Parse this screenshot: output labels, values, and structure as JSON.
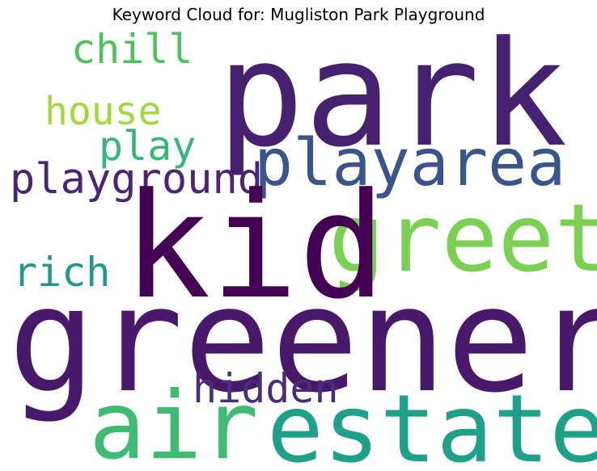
{
  "title": "Keyword Cloud for: Mugliston Park Playground",
  "words": [
    {
      "id": "w-chill",
      "text": "chill",
      "color": "#4ec25f"
    },
    {
      "id": "w-house",
      "text": "house",
      "color": "#a0da39"
    },
    {
      "id": "w-play",
      "text": "play",
      "color": "#35b779"
    },
    {
      "id": "w-playground",
      "text": "playground",
      "color": "#482576"
    },
    {
      "id": "w-park",
      "text": "park",
      "color": "#46216f"
    },
    {
      "id": "w-playarea",
      "text": "playarea",
      "color": "#39568c"
    },
    {
      "id": "w-greet",
      "text": "greet",
      "color": "#7ad151"
    },
    {
      "id": "w-kid",
      "text": "kid",
      "color": "#440154"
    },
    {
      "id": "w-rich",
      "text": "rich",
      "color": "#1f9a8a"
    },
    {
      "id": "w-greenery",
      "text": "greenery",
      "color": "#48186a"
    },
    {
      "id": "w-hidden",
      "text": "hidden",
      "color": "#472d7b"
    },
    {
      "id": "w-air",
      "text": "air",
      "color": "#3fbc73"
    },
    {
      "id": "w-estate",
      "text": "estate",
      "color": "#1fa088"
    }
  ]
}
